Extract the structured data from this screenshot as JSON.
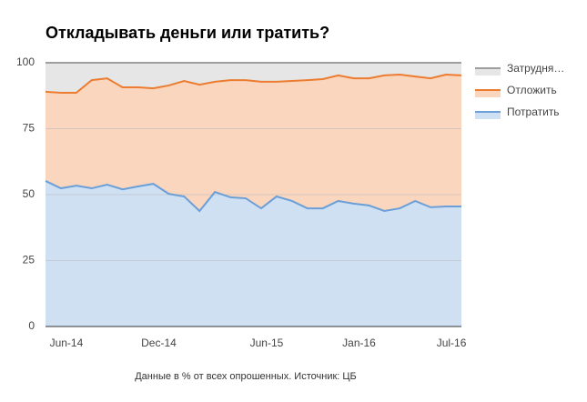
{
  "chart_data": {
    "type": "stacked_area",
    "title": "Откладывать деньги или тратить?",
    "note": "Данные в % от всех опрошенных. Источник: ЦБ",
    "categories": [
      null,
      "Jun-14",
      null,
      null,
      null,
      null,
      null,
      "Dec-14",
      null,
      null,
      null,
      null,
      null,
      null,
      "Jun-15",
      null,
      null,
      null,
      null,
      null,
      "Jan-16",
      null,
      null,
      null,
      null,
      null,
      "Jul-16",
      null
    ],
    "series": [
      {
        "name": "Потратить",
        "color": "#6a9fd8",
        "fill": "#cfe0f3",
        "values": [
          55.2,
          52.4,
          53.4,
          52.4,
          53.8,
          52,
          53.1,
          54.1,
          50.3,
          49.3,
          43.8,
          51,
          49,
          48.6,
          44.8,
          49.3,
          47.6,
          44.8,
          44.8,
          47.6,
          46.6,
          45.9,
          43.8,
          44.8,
          47.6,
          45.2,
          45.5,
          45.5
        ]
      },
      {
        "name": "Отложить",
        "color": "#ec7c30",
        "fill": "#fad6bf",
        "values": [
          33.8,
          36.2,
          35.2,
          41,
          40.3,
          38.7,
          37.6,
          36.2,
          41.1,
          43.8,
          47.9,
          41.8,
          44.4,
          44.8,
          48,
          43.5,
          45.5,
          48.6,
          49,
          47.6,
          47.5,
          48.2,
          51.4,
          50.7,
          47.2,
          48.9,
          50,
          49.7
        ]
      },
      {
        "name": "Затрудня…",
        "color": "#9e9e9e",
        "fill": "#e6e6e6",
        "values": [
          11,
          11.4,
          11.4,
          6.6,
          5.9,
          9.3,
          9.3,
          9.7,
          8.6,
          6.9,
          8.3,
          7.2,
          6.6,
          6.6,
          7.2,
          7.2,
          6.9,
          6.6,
          6.2,
          4.8,
          5.9,
          5.9,
          4.8,
          4.5,
          5.2,
          5.9,
          4.5,
          4.8
        ]
      }
    ],
    "ylim": [
      0,
      100
    ],
    "yticks": [
      0,
      25,
      50,
      75,
      100
    ],
    "grid": true,
    "legend": "right"
  }
}
